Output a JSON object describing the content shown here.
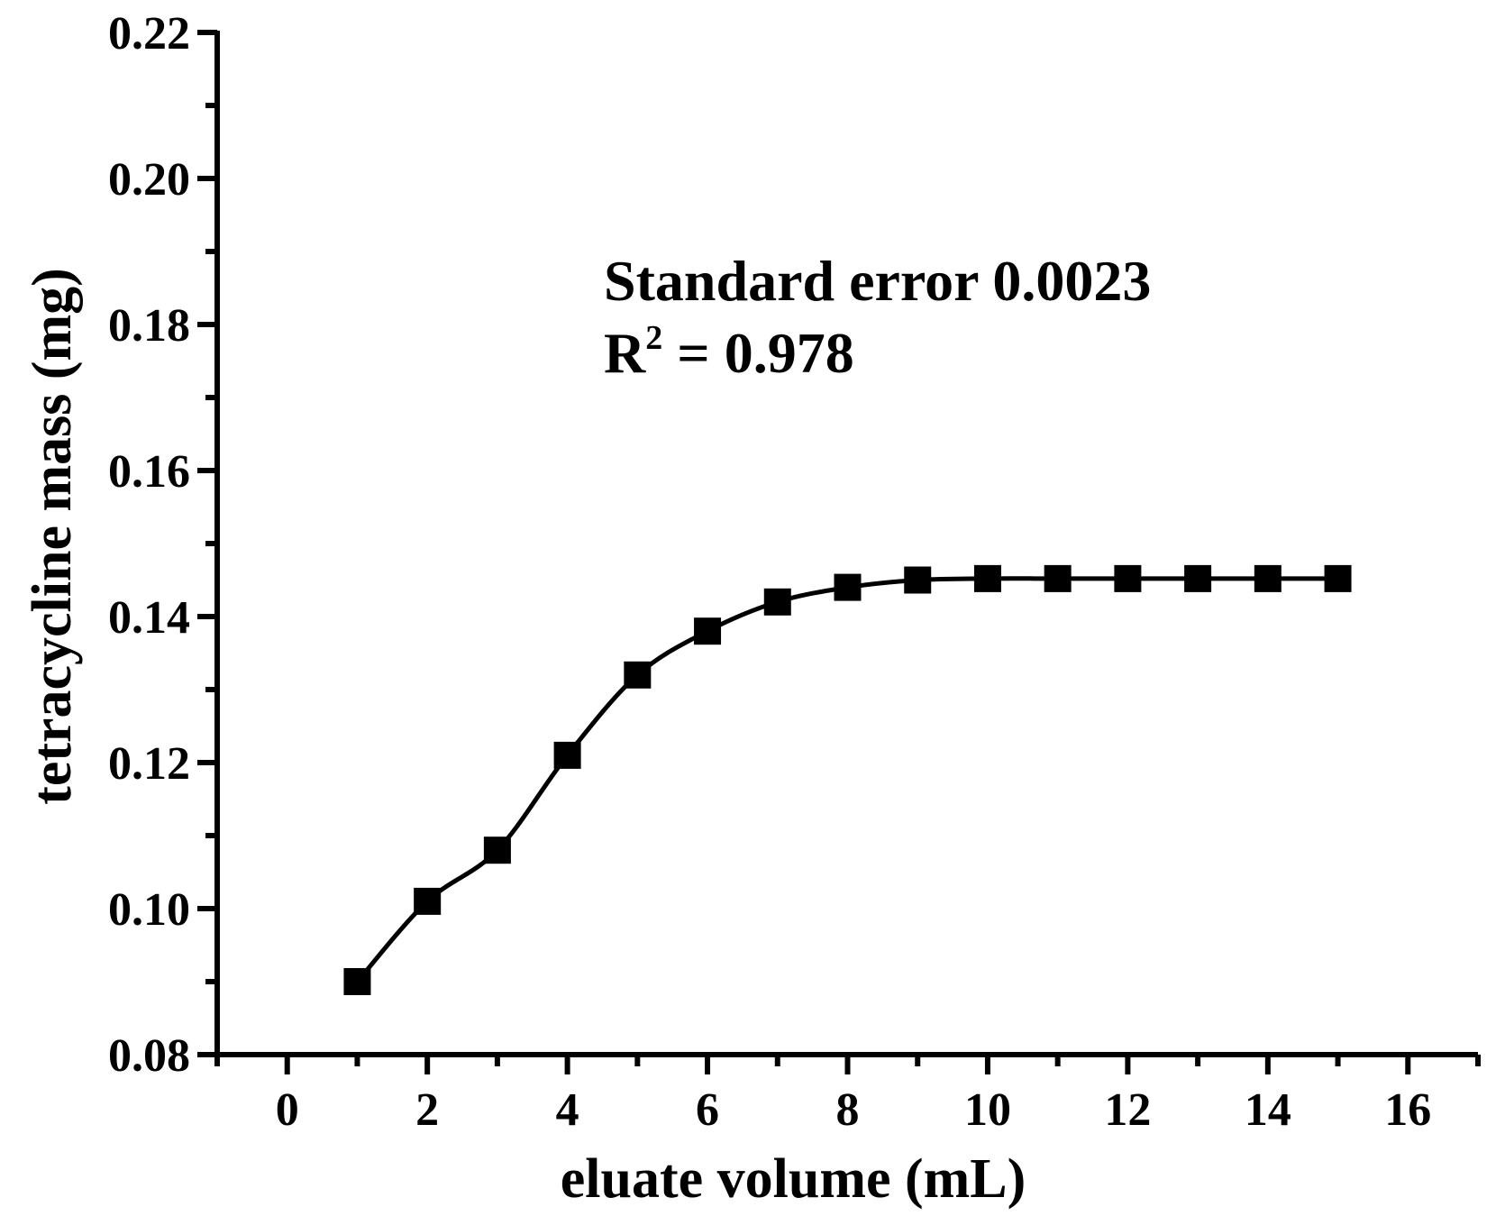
{
  "chart_data": {
    "type": "line",
    "title": "",
    "xlabel": "eluate volume (mL)",
    "ylabel": "tetracycline mass (mg)",
    "xlim": [
      -1,
      17
    ],
    "ylim": [
      0.08,
      0.22
    ],
    "x_ticks": [
      0,
      2,
      4,
      6,
      8,
      10,
      12,
      14,
      16
    ],
    "x_tick_labels": [
      "0",
      "2",
      "4",
      "6",
      "8",
      "10",
      "12",
      "14",
      "16"
    ],
    "y_ticks": [
      0.08,
      0.1,
      0.12,
      0.14,
      0.16,
      0.18,
      0.2,
      0.22
    ],
    "y_tick_labels": [
      "0.08",
      "0.10",
      "0.12",
      "0.14",
      "0.16",
      "0.18",
      "0.20",
      "0.22"
    ],
    "grid": false,
    "legend": "none",
    "marker": "square",
    "line_style": "smooth",
    "color": "#000000",
    "series": [
      {
        "x": [
          1,
          2,
          3,
          4,
          5,
          6,
          7,
          8,
          9,
          10,
          11,
          12,
          13,
          14,
          15
        ],
        "y": [
          0.09,
          0.101,
          0.108,
          0.121,
          0.132,
          0.138,
          0.142,
          0.144,
          0.145,
          0.1452,
          0.1452,
          0.1452,
          0.1452,
          0.1452,
          0.1452
        ]
      }
    ],
    "annotations": {
      "line1": "Standard error 0.0023",
      "r_symbol": "R",
      "r_superscript": "2",
      "r_value": " = 0.978"
    }
  }
}
